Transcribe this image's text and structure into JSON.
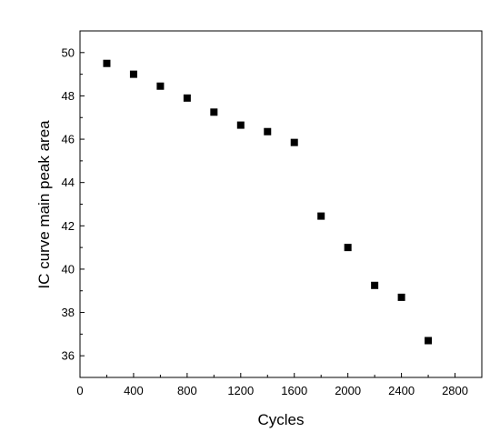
{
  "chart_data": {
    "type": "scatter",
    "title": "",
    "xlabel": "Cycles",
    "ylabel": "IC curve main peak area",
    "xlim": [
      0,
      3000
    ],
    "ylim": [
      35,
      51
    ],
    "xticks": [
      0,
      400,
      800,
      1200,
      1600,
      2000,
      2400,
      2800
    ],
    "yticks": [
      36,
      38,
      40,
      42,
      44,
      46,
      48,
      50
    ],
    "marker_color": "#000000",
    "marker": "square",
    "series": [
      {
        "x": [
          200,
          400,
          600,
          800,
          1000,
          1200,
          1400,
          1600,
          1800,
          2000,
          2200,
          2400,
          2600
        ],
        "y": [
          49.5,
          49.0,
          48.45,
          47.9,
          47.25,
          46.65,
          46.35,
          45.85,
          42.45,
          41.0,
          39.25,
          38.7,
          36.7
        ]
      }
    ]
  }
}
